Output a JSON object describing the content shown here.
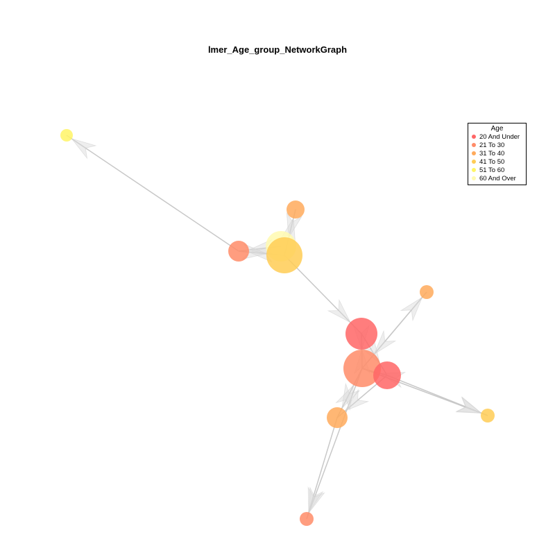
{
  "title": "lmer_Age_group_NetworkGraph",
  "legend": {
    "title": "Age",
    "items": [
      {
        "label": "20 And Under",
        "color": "#FF6666"
      },
      {
        "label": "21 To 30",
        "color": "#FF8C69"
      },
      {
        "label": "31 To 40",
        "color": "#FFAA5C"
      },
      {
        "label": "41 To 50",
        "color": "#FFCC55"
      },
      {
        "label": "51 To 60",
        "color": "#FFF566"
      },
      {
        "label": "60 And Over",
        "color": "#FFFAB0"
      }
    ]
  }
}
